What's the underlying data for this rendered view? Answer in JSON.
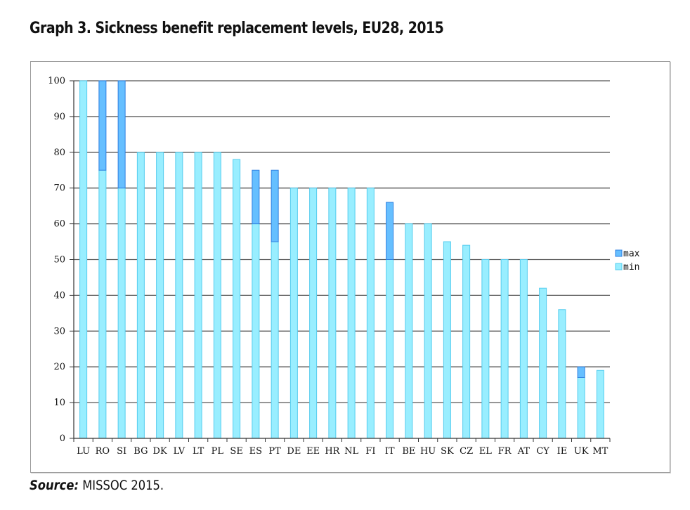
{
  "title": "Graph 3. Sickness benefit replacement levels, EU28, 2015",
  "source": {
    "label": "Source:",
    "text": " MISSOC 2015."
  },
  "colors": {
    "max": "#66bfff",
    "max_edge": "#2f7fe0",
    "min": "#99eeff",
    "min_edge": "#55ccee",
    "grid": "#555555"
  },
  "chart_data": {
    "type": "bar",
    "stacked": true,
    "title": "Graph 3. Sickness benefit replacement levels, EU28, 2015",
    "xlabel": "",
    "ylabel": "",
    "ylim": [
      0,
      100
    ],
    "yticks": [
      0,
      10,
      20,
      30,
      40,
      50,
      60,
      70,
      80,
      90,
      100
    ],
    "grid": true,
    "legend": "right",
    "categories": [
      "LU",
      "RO",
      "SI",
      "BG",
      "DK",
      "LV",
      "LT",
      "PL",
      "SE",
      "ES",
      "PT",
      "DE",
      "EE",
      "HR",
      "NL",
      "FI",
      "IT",
      "BE",
      "HU",
      "SK",
      "CZ",
      "EL",
      "FR",
      "AT",
      "CY",
      "IE",
      "UK",
      "MT"
    ],
    "series": [
      {
        "name": "min",
        "values": [
          100,
          75,
          70,
          80,
          80,
          80,
          80,
          80,
          78,
          60,
          55,
          70,
          70,
          70,
          70,
          70,
          50,
          60,
          60,
          55,
          54,
          50,
          50,
          50,
          42,
          36,
          17,
          19
        ]
      },
      {
        "name": "max",
        "values": [
          100,
          100,
          100,
          80,
          80,
          80,
          80,
          80,
          78,
          75,
          75,
          70,
          70,
          70,
          70,
          70,
          66,
          60,
          60,
          55,
          54,
          50,
          50,
          50,
          42,
          36,
          20,
          19
        ]
      }
    ],
    "legend_entries": [
      "max",
      "min"
    ]
  }
}
